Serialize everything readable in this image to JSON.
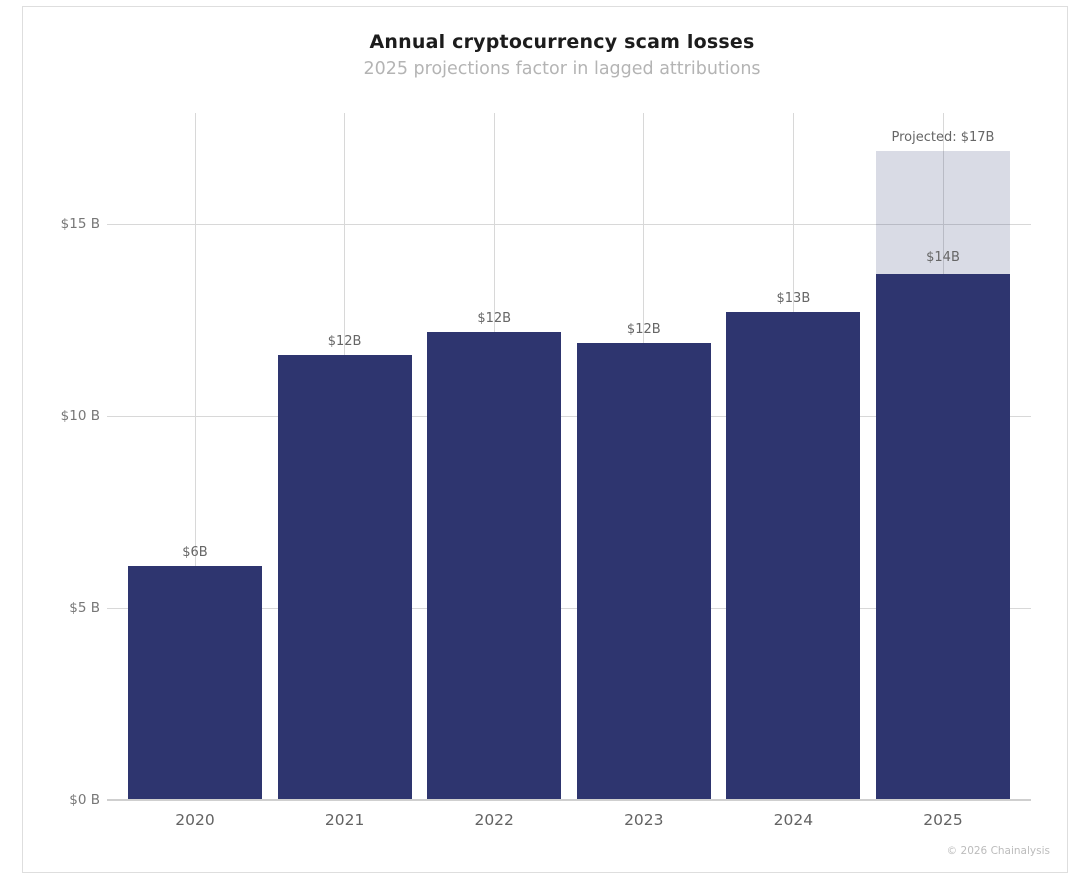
{
  "chart_data": {
    "type": "bar",
    "title": "Annual cryptocurrency scam losses",
    "subtitle": "2025 projections factor in lagged attributions",
    "attribution": "© 2026 Chainalysis",
    "categories": [
      "2020",
      "2021",
      "2022",
      "2023",
      "2024",
      "2025"
    ],
    "bars": [
      {
        "year": "2020",
        "value": 6.1,
        "label": "$6B"
      },
      {
        "year": "2021",
        "value": 11.6,
        "label": "$12B"
      },
      {
        "year": "2022",
        "value": 12.2,
        "label": "$12B"
      },
      {
        "year": "2023",
        "value": 11.9,
        "label": "$12B"
      },
      {
        "year": "2024",
        "value": 12.7,
        "label": "$13B"
      },
      {
        "year": "2025",
        "value": 13.7,
        "label": "$14B",
        "projected_total": 16.9,
        "projected_label": "Projected: $17B"
      }
    ],
    "yticks": [
      {
        "value": 0,
        "label": "$0 B"
      },
      {
        "value": 5,
        "label": "$5 B"
      },
      {
        "value": 10,
        "label": "$10 B"
      },
      {
        "value": 15,
        "label": "$15 B"
      }
    ],
    "ylim": [
      0,
      17.9
    ],
    "grid": true,
    "legend": "none",
    "colors": {
      "bar": "#2e356f",
      "projected_fill": "rgba(46, 53, 110, 0.18)",
      "gridline": "#d8d8d8",
      "axis_line": "#cfcfcf",
      "axis_text": "#777777",
      "value_label_text": "#666666",
      "title_text": "#1c1c1c",
      "subtitle_text": "#b4b4b4",
      "attribution_text": "#bcbcbc",
      "card_border": "#dedede"
    }
  }
}
